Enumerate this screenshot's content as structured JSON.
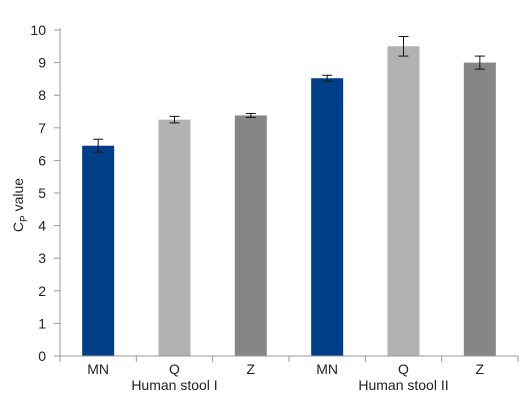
{
  "chart_data": {
    "type": "bar",
    "categories": [
      "MN",
      "Q",
      "Z",
      "MN",
      "Q",
      "Z"
    ],
    "groups": [
      "Human stool I",
      "Human stool II"
    ],
    "values": [
      6.45,
      7.25,
      7.38,
      8.52,
      9.5,
      9.0
    ],
    "errors": [
      0.2,
      0.1,
      0.06,
      0.09,
      0.3,
      0.2
    ],
    "bar_colors": [
      "#003f88",
      "#b2b2b4",
      "#868686",
      "#003f88",
      "#b2b2b4",
      "#868686"
    ],
    "ylabel": "C",
    "ylabel_subscript": "P",
    "ylabel_suffix": " value",
    "ylim": [
      0,
      10
    ],
    "yticks": [
      "0",
      "1",
      "2",
      "3",
      "4",
      "5",
      "6",
      "7",
      "8",
      "9",
      "10"
    ],
    "grid": false,
    "legend": "none"
  }
}
